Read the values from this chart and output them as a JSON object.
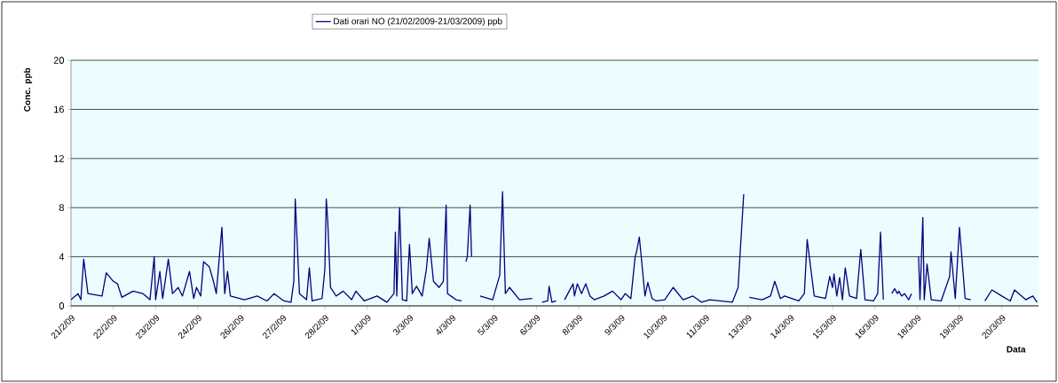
{
  "chart_data": {
    "type": "line",
    "xlabel": "Data",
    "ylabel": "Conc. ppb",
    "legend": "top",
    "grid": "y",
    "marker": "none",
    "line_style": "solid",
    "xlim": [
      "2009-02-21T00:00",
      "2009-03-21T14:00"
    ],
    "ylim": [
      0,
      20
    ],
    "yticks": [
      0,
      4,
      8,
      12,
      16,
      20
    ],
    "xticks": [
      {
        "value": "2009-02-21T00:00",
        "label": "21/2/09"
      },
      {
        "value": "2009-02-22T06:00",
        "label": "22/2/09"
      },
      {
        "value": "2009-02-23T12:00",
        "label": "23/2/09"
      },
      {
        "value": "2009-02-24T18:00",
        "label": "24/2/09"
      },
      {
        "value": "2009-02-26T00:00",
        "label": "26/2/09"
      },
      {
        "value": "2009-02-27T06:00",
        "label": "27/2/09"
      },
      {
        "value": "2009-02-28T12:00",
        "label": "28/2/09"
      },
      {
        "value": "2009-03-01T18:00",
        "label": "1/3/09"
      },
      {
        "value": "2009-03-03T00:00",
        "label": "3/3/09"
      },
      {
        "value": "2009-03-04T06:00",
        "label": "4/3/09"
      },
      {
        "value": "2009-03-05T12:00",
        "label": "5/3/09"
      },
      {
        "value": "2009-03-06T18:00",
        "label": "6/3/09"
      },
      {
        "value": "2009-03-08T00:00",
        "label": "8/3/09"
      },
      {
        "value": "2009-03-09T06:00",
        "label": "9/3/09"
      },
      {
        "value": "2009-03-10T12:00",
        "label": "10/3/09"
      },
      {
        "value": "2009-03-11T18:00",
        "label": "11/3/09"
      },
      {
        "value": "2009-03-13T00:00",
        "label": "13/3/09"
      },
      {
        "value": "2009-03-14T06:00",
        "label": "14/3/09"
      },
      {
        "value": "2009-03-15T12:00",
        "label": "15/3/09"
      },
      {
        "value": "2009-03-16T18:00",
        "label": "16/3/09"
      },
      {
        "value": "2009-03-18T00:00",
        "label": "18/3/09"
      },
      {
        "value": "2009-03-19T06:00",
        "label": "19/3/09"
      },
      {
        "value": "2009-03-20T12:00",
        "label": "20/3/09"
      }
    ],
    "series": [
      {
        "name": "Dati orari NO (21/02/2009-21/03/2009) ppb",
        "color": "#000080",
        "x": [
          "2009-02-21T00:00",
          "2009-02-21T05:00",
          "2009-02-21T07:00",
          "2009-02-21T09:00",
          "2009-02-21T12:00",
          "2009-02-21T22:00",
          "2009-02-22T01:00",
          "2009-02-22T06:00",
          "2009-02-22T09:00",
          "2009-02-22T12:00",
          "2009-02-22T20:00",
          "2009-02-23T03:00",
          "2009-02-23T08:00",
          "2009-02-23T11:00",
          "2009-02-23T12:00",
          "2009-02-23T15:00",
          "2009-02-23T17:00",
          "2009-02-23T21:00",
          "2009-02-24T00:00",
          "2009-02-24T04:00",
          "2009-02-24T07:00",
          "2009-02-24T12:00",
          "2009-02-24T15:00",
          "2009-02-24T17:00",
          "2009-02-24T20:00",
          "2009-02-24T22:00",
          "2009-02-25T02:00",
          "2009-02-25T05:00",
          "2009-02-25T07:00",
          "2009-02-25T11:00",
          "2009-02-25T13:00",
          "2009-02-25T15:00",
          "2009-02-25T17:00",
          "2009-02-26T03:00",
          "2009-02-26T12:00",
          "2009-02-26T19:00",
          "2009-02-27T00:00",
          "2009-02-27T07:00",
          "2009-02-27T12:00",
          "2009-02-27T14:00",
          "2009-02-27T15:00",
          "2009-02-27T18:00",
          "2009-02-27T23:00",
          "2009-02-28T01:00",
          "2009-02-28T03:00",
          "2009-02-28T10:00",
          "2009-02-28T12:00",
          "2009-02-28T13:00",
          "2009-02-28T14:00",
          "2009-02-28T16:00",
          "2009-02-28T20:00",
          "2009-03-01T01:00",
          "2009-03-01T07:00",
          "2009-03-01T10:00",
          "2009-03-01T16:00",
          "2009-03-02T01:00",
          "2009-03-02T08:00",
          "2009-03-02T13:00",
          "2009-03-02T14:00",
          "2009-03-02T15:00",
          "2009-03-02T17:00",
          "2009-03-02T19:00",
          "2009-03-02T22:00",
          "2009-03-03T00:00",
          "2009-03-03T02:00",
          "2009-03-03T05:00",
          "2009-03-03T09:00",
          "2009-03-03T12:00",
          "2009-03-03T14:00",
          "2009-03-03T17:00",
          "2009-03-03T21:00",
          "2009-03-04T00:00",
          "2009-03-04T02:00",
          "2009-03-04T03:00",
          "2009-03-04T09:00",
          "2009-03-04T13:00",
          "2009-03-04T14:00",
          "2009-03-04T16:00",
          "2009-03-04T17:00",
          "2009-03-04T19:00",
          "2009-03-04T20:00",
          "2009-03-04T22:00",
          "2009-03-05T02:00",
          "2009-03-05T11:00",
          "2009-03-05T16:00",
          "2009-03-05T18:00",
          "2009-03-05T20:00",
          "2009-03-05T23:00",
          "2009-03-06T06:00",
          "2009-03-06T15:00",
          "2009-03-06T17:00",
          "2009-03-06T22:00",
          "2009-03-07T02:00",
          "2009-03-07T03:00",
          "2009-03-07T05:00",
          "2009-03-07T08:00",
          "2009-03-07T11:00",
          "2009-03-07T14:00",
          "2009-03-07T20:00",
          "2009-03-07T21:00",
          "2009-03-07T23:00",
          "2009-03-08T02:00",
          "2009-03-08T05:00",
          "2009-03-08T08:00",
          "2009-03-08T11:00",
          "2009-03-08T18:00",
          "2009-03-09T00:00",
          "2009-03-09T06:00",
          "2009-03-09T09:00",
          "2009-03-09T13:00",
          "2009-03-09T16:00",
          "2009-03-09T17:00",
          "2009-03-09T19:00",
          "2009-03-09T23:00",
          "2009-03-10T01:00",
          "2009-03-10T04:00",
          "2009-03-10T07:00",
          "2009-03-10T13:00",
          "2009-03-10T19:00",
          "2009-03-11T02:00",
          "2009-03-11T09:00",
          "2009-03-11T15:00",
          "2009-03-11T21:00",
          "2009-03-12T13:00",
          "2009-03-12T17:00",
          "2009-03-12T21:00",
          "2009-03-12T23:00",
          "2009-03-13T01:00",
          "2009-03-13T10:00",
          "2009-03-13T16:00",
          "2009-03-13T19:00",
          "2009-03-13T23:00",
          "2009-03-14T02:00",
          "2009-03-14T12:00",
          "2009-03-14T16:00",
          "2009-03-14T18:00",
          "2009-03-14T23:00",
          "2009-03-15T07:00",
          "2009-03-15T10:00",
          "2009-03-15T12:00",
          "2009-03-15T13:00",
          "2009-03-15T15:00",
          "2009-03-15T17:00",
          "2009-03-15T19:00",
          "2009-03-15T21:00",
          "2009-03-16T00:00",
          "2009-03-16T05:00",
          "2009-03-16T08:00",
          "2009-03-16T11:00",
          "2009-03-16T17:00",
          "2009-03-16T20:00",
          "2009-03-16T22:00",
          "2009-03-17T00:00",
          "2009-03-17T02:00",
          "2009-03-17T06:00",
          "2009-03-17T08:00",
          "2009-03-17T10:00",
          "2009-03-17T11:00",
          "2009-03-17T13:00",
          "2009-03-17T15:00",
          "2009-03-17T18:00",
          "2009-03-17T20:00",
          "2009-03-17T22:00",
          "2009-03-18T01:00",
          "2009-03-18T02:00",
          "2009-03-18T04:00",
          "2009-03-18T05:00",
          "2009-03-18T07:00",
          "2009-03-18T10:00",
          "2009-03-18T17:00",
          "2009-03-18T23:00",
          "2009-03-19T00:00",
          "2009-03-19T03:00",
          "2009-03-19T06:00",
          "2009-03-19T10:00",
          "2009-03-19T14:00",
          "2009-03-19T17:00",
          "2009-03-20T00:00",
          "2009-03-20T05:00",
          "2009-03-20T12:00",
          "2009-03-20T18:00",
          "2009-03-20T21:00",
          "2009-03-21T05:00",
          "2009-03-21T10:00",
          "2009-03-21T13:00"
        ],
        "values": [
          0.5,
          1.0,
          0.5,
          3.8,
          1.0,
          0.8,
          2.7,
          2.0,
          1.8,
          0.7,
          1.2,
          1.0,
          0.5,
          4.0,
          0.5,
          2.8,
          0.6,
          3.8,
          1.0,
          1.5,
          0.8,
          2.8,
          0.6,
          1.5,
          0.8,
          3.6,
          3.2,
          2.0,
          1.0,
          6.4,
          1.0,
          2.8,
          0.8,
          0.5,
          0.8,
          0.4,
          1.0,
          0.4,
          0.3,
          2.0,
          8.7,
          1.0,
          0.5,
          3.1,
          0.4,
          0.6,
          3.0,
          8.7,
          7.0,
          1.5,
          0.8,
          1.2,
          0.5,
          1.2,
          0.4,
          0.8,
          0.3,
          1.0,
          6.0,
          0.8,
          8.0,
          0.5,
          0.4,
          5.0,
          1.0,
          1.6,
          0.8,
          3.0,
          5.5,
          2.0,
          1.5,
          2.0,
          8.2,
          1.0,
          0.5,
          0.4,
          null,
          3.6,
          4.0,
          8.2,
          4.0,
          null,
          0.8,
          0.5,
          2.5,
          9.3,
          1.0,
          1.5,
          0.5,
          0.6,
          null,
          0.3,
          0.4,
          1.6,
          0.3,
          0.4,
          null,
          0.5,
          1.8,
          0.8,
          1.8,
          1.0,
          1.8,
          0.8,
          0.5,
          0.8,
          1.2,
          0.5,
          1.0,
          0.6,
          4.0,
          4.4,
          5.6,
          0.8,
          1.9,
          0.6,
          0.4,
          0.5,
          1.5,
          0.5,
          0.8,
          0.3,
          0.5,
          0.3,
          1.5,
          9.1,
          null,
          0.7,
          0.5,
          0.8,
          2.0,
          0.6,
          0.8,
          0.4,
          1.0,
          5.4,
          0.8,
          0.6,
          2.4,
          1.5,
          2.6,
          0.8,
          2.3,
          0.5,
          3.1,
          0.8,
          0.6,
          4.6,
          0.5,
          0.4,
          1.0,
          6.0,
          0.5,
          null,
          1.0,
          1.4,
          1.0,
          1.2,
          0.8,
          1.0,
          0.5,
          1.0,
          null,
          4.0,
          0.5,
          7.2,
          0.5,
          3.4,
          0.5,
          0.4,
          2.4,
          4.4,
          0.6,
          6.4,
          0.6,
          0.5,
          null,
          0.4,
          1.3,
          0.8,
          0.4,
          1.3,
          0.5,
          0.8,
          0.3
        ]
      }
    ]
  }
}
